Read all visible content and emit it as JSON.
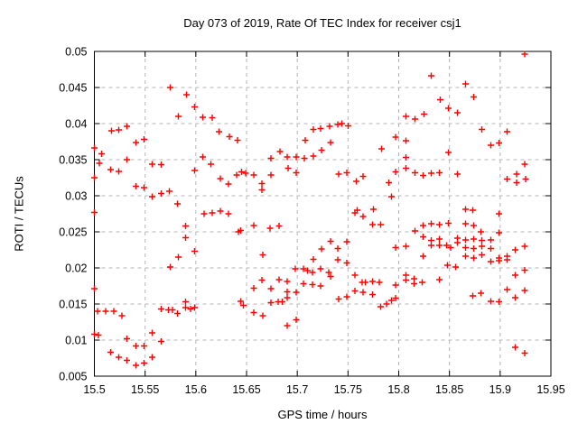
{
  "chart_data": {
    "type": "scatter",
    "title": "Day 073 of 2019, Rate Of TEC Index for receiver csj1",
    "xlabel": "GPS time / hours",
    "ylabel": "ROTI / TECUs",
    "xlim": [
      15.5,
      15.95
    ],
    "ylim": [
      0.005,
      0.05
    ],
    "grid": true,
    "legend_position": "none",
    "xticks": [
      15.5,
      15.55,
      15.6,
      15.65,
      15.7,
      15.75,
      15.8,
      15.85,
      15.9,
      15.95
    ],
    "xtick_labels": [
      "15.5",
      "15.55",
      "15.6",
      "15.65",
      "15.7",
      "15.75",
      "15.8",
      "15.85",
      "15.9",
      "15.95"
    ],
    "yticks": [
      0.005,
      0.01,
      0.015,
      0.02,
      0.025,
      0.03,
      0.035,
      0.04,
      0.045,
      0.05
    ],
    "ytick_labels": [
      "0.005",
      "0.01",
      "0.015",
      "0.02",
      "0.025",
      "0.03",
      "0.035",
      "0.04",
      "0.045",
      "0.05"
    ],
    "marker": {
      "symbol": "plus",
      "color": "#ff0000",
      "size": 7
    },
    "colors": {
      "border": "#000000",
      "grid": "#b6b6b6",
      "background": "#ffffff"
    },
    "series": [
      {
        "name": "ROTI",
        "points": [
          [
            15.575,
            0.045
          ],
          [
            15.591,
            0.044
          ],
          [
            15.599,
            0.0423
          ],
          [
            15.583,
            0.041
          ],
          [
            15.607,
            0.0409
          ],
          [
            15.616,
            0.0408
          ],
          [
            15.517,
            0.039
          ],
          [
            15.524,
            0.0391
          ],
          [
            15.532,
            0.0396
          ],
          [
            15.623,
            0.0389
          ],
          [
            15.633,
            0.0382
          ],
          [
            15.641,
            0.0377
          ],
          [
            15.541,
            0.0374
          ],
          [
            15.549,
            0.0378
          ],
          [
            15.5,
            0.0366
          ],
          [
            15.507,
            0.0358
          ],
          [
            15.532,
            0.035
          ],
          [
            15.505,
            0.0345
          ],
          [
            15.5,
            0.0325
          ],
          [
            15.516,
            0.0336
          ],
          [
            15.524,
            0.0334
          ],
          [
            15.557,
            0.0344
          ],
          [
            15.566,
            0.0343
          ],
          [
            15.607,
            0.0354
          ],
          [
            15.599,
            0.0335
          ],
          [
            15.615,
            0.0344
          ],
          [
            15.624,
            0.0324
          ],
          [
            15.632,
            0.0316
          ],
          [
            15.64,
            0.0329
          ],
          [
            15.541,
            0.0313
          ],
          [
            15.549,
            0.0311
          ],
          [
            15.557,
            0.0299
          ],
          [
            15.566,
            0.0303
          ],
          [
            15.574,
            0.0306
          ],
          [
            15.582,
            0.0289
          ],
          [
            15.608,
            0.0275
          ],
          [
            15.616,
            0.0276
          ],
          [
            15.624,
            0.0279
          ],
          [
            15.632,
            0.0275
          ],
          [
            15.5,
            0.0277
          ],
          [
            15.642,
            0.025
          ],
          [
            15.59,
            0.0258
          ],
          [
            15.59,
            0.0242
          ],
          [
            15.599,
            0.0223
          ],
          [
            15.583,
            0.0215
          ],
          [
            15.575,
            0.0201
          ],
          [
            15.5,
            0.0171
          ],
          [
            15.503,
            0.014
          ],
          [
            15.511,
            0.014
          ],
          [
            15.519,
            0.014
          ],
          [
            15.527,
            0.0134
          ],
          [
            15.566,
            0.0143
          ],
          [
            15.573,
            0.0142
          ],
          [
            15.577,
            0.0142
          ],
          [
            15.582,
            0.0137
          ],
          [
            15.59,
            0.0145
          ],
          [
            15.595,
            0.0143
          ],
          [
            15.599,
            0.0145
          ],
          [
            15.59,
            0.0153
          ],
          [
            15.5,
            0.0108
          ],
          [
            15.504,
            0.0107
          ],
          [
            15.532,
            0.0102
          ],
          [
            15.541,
            0.0092
          ],
          [
            15.549,
            0.0092
          ],
          [
            15.557,
            0.011
          ],
          [
            15.566,
            0.0098
          ],
          [
            15.516,
            0.0083
          ],
          [
            15.524,
            0.0076
          ],
          [
            15.532,
            0.0072
          ],
          [
            15.541,
            0.0065
          ],
          [
            15.549,
            0.0068
          ],
          [
            15.557,
            0.0076
          ],
          [
            15.716,
            0.0392
          ],
          [
            15.723,
            0.0393
          ],
          [
            15.732,
            0.0396
          ],
          [
            15.74,
            0.0399
          ],
          [
            15.744,
            0.04
          ],
          [
            15.75,
            0.0397
          ],
          [
            15.708,
            0.0377
          ],
          [
            15.733,
            0.0374
          ],
          [
            15.724,
            0.0363
          ],
          [
            15.683,
            0.0361
          ],
          [
            15.674,
            0.0352
          ],
          [
            15.69,
            0.0354
          ],
          [
            15.699,
            0.0354
          ],
          [
            15.707,
            0.0352
          ],
          [
            15.716,
            0.0355
          ],
          [
            15.783,
            0.0365
          ],
          [
            15.797,
            0.0381
          ],
          [
            15.691,
            0.0338
          ],
          [
            15.699,
            0.0332
          ],
          [
            15.645,
            0.0333
          ],
          [
            15.649,
            0.0331
          ],
          [
            15.657,
            0.0329
          ],
          [
            15.674,
            0.0329
          ],
          [
            15.665,
            0.0317
          ],
          [
            15.665,
            0.0308
          ],
          [
            15.741,
            0.033
          ],
          [
            15.749,
            0.0332
          ],
          [
            15.758,
            0.032
          ],
          [
            15.765,
            0.0327
          ],
          [
            15.79,
            0.0318
          ],
          [
            15.793,
            0.0299
          ],
          [
            15.775,
            0.0281
          ],
          [
            15.759,
            0.028
          ],
          [
            15.924,
            0.0496
          ],
          [
            15.832,
            0.0466
          ],
          [
            15.866,
            0.0455
          ],
          [
            15.874,
            0.0437
          ],
          [
            15.841,
            0.0433
          ],
          [
            15.849,
            0.0421
          ],
          [
            15.858,
            0.0415
          ],
          [
            15.825,
            0.0413
          ],
          [
            15.807,
            0.041
          ],
          [
            15.816,
            0.0406
          ],
          [
            15.807,
            0.0376
          ],
          [
            15.882,
            0.0392
          ],
          [
            15.907,
            0.0389
          ],
          [
            15.891,
            0.037
          ],
          [
            15.899,
            0.0373
          ],
          [
            15.849,
            0.036
          ],
          [
            15.807,
            0.0353
          ],
          [
            15.797,
            0.0333
          ],
          [
            15.807,
            0.0338
          ],
          [
            15.816,
            0.0332
          ],
          [
            15.824,
            0.0328
          ],
          [
            15.832,
            0.0331
          ],
          [
            15.84,
            0.0332
          ],
          [
            15.858,
            0.033
          ],
          [
            15.924,
            0.0344
          ],
          [
            15.907,
            0.0323
          ],
          [
            15.916,
            0.033
          ],
          [
            15.916,
            0.0318
          ],
          [
            15.925,
            0.0323
          ],
          [
            15.644,
            0.0252
          ],
          [
            15.657,
            0.0259
          ],
          [
            15.673,
            0.0255
          ],
          [
            15.682,
            0.0258
          ],
          [
            15.757,
            0.0276
          ],
          [
            15.765,
            0.0271
          ],
          [
            15.774,
            0.026
          ],
          [
            15.782,
            0.026
          ],
          [
            15.733,
            0.0237
          ],
          [
            15.749,
            0.0236
          ],
          [
            15.724,
            0.0226
          ],
          [
            15.74,
            0.0227
          ],
          [
            15.666,
            0.0218
          ],
          [
            15.716,
            0.0212
          ],
          [
            15.74,
            0.0211
          ],
          [
            15.749,
            0.0207
          ],
          [
            15.698,
            0.0199
          ],
          [
            15.706,
            0.0199
          ],
          [
            15.71,
            0.0196
          ],
          [
            15.715,
            0.0194
          ],
          [
            15.723,
            0.0199
          ],
          [
            15.731,
            0.0194
          ],
          [
            15.733,
            0.0188
          ],
          [
            15.665,
            0.0183
          ],
          [
            15.682,
            0.0184
          ],
          [
            15.69,
            0.0181
          ],
          [
            15.657,
            0.0172
          ],
          [
            15.674,
            0.0171
          ],
          [
            15.69,
            0.0167
          ],
          [
            15.699,
            0.0166
          ],
          [
            15.706,
            0.0178
          ],
          [
            15.715,
            0.0177
          ],
          [
            15.723,
            0.0175
          ],
          [
            15.757,
            0.019
          ],
          [
            15.764,
            0.018
          ],
          [
            15.767,
            0.018
          ],
          [
            15.774,
            0.0181
          ],
          [
            15.781,
            0.018
          ],
          [
            15.757,
            0.0168
          ],
          [
            15.765,
            0.0166
          ],
          [
            15.774,
            0.0163
          ],
          [
            15.644,
            0.0154
          ],
          [
            15.647,
            0.0148
          ],
          [
            15.674,
            0.0152
          ],
          [
            15.681,
            0.0153
          ],
          [
            15.685,
            0.0153
          ],
          [
            15.69,
            0.0159
          ],
          [
            15.741,
            0.0157
          ],
          [
            15.749,
            0.016
          ],
          [
            15.782,
            0.0146
          ],
          [
            15.788,
            0.015
          ],
          [
            15.793,
            0.0155
          ],
          [
            15.657,
            0.0138
          ],
          [
            15.666,
            0.0134
          ],
          [
            15.699,
            0.0128
          ],
          [
            15.69,
            0.012
          ],
          [
            15.816,
            0.0251
          ],
          [
            15.824,
            0.0259
          ],
          [
            15.832,
            0.0261
          ],
          [
            15.84,
            0.026
          ],
          [
            15.849,
            0.0262
          ],
          [
            15.824,
            0.0243
          ],
          [
            15.832,
            0.0238
          ],
          [
            15.84,
            0.024
          ],
          [
            15.832,
            0.0231
          ],
          [
            15.84,
            0.0231
          ],
          [
            15.824,
            0.0216
          ],
          [
            15.797,
            0.0228
          ],
          [
            15.807,
            0.023
          ],
          [
            15.847,
            0.0231
          ],
          [
            15.851,
            0.0228
          ],
          [
            15.866,
            0.0261
          ],
          [
            15.874,
            0.0259
          ],
          [
            15.858,
            0.0241
          ],
          [
            15.858,
            0.0235
          ],
          [
            15.866,
            0.0239
          ],
          [
            15.866,
            0.0228
          ],
          [
            15.866,
            0.0216
          ],
          [
            15.874,
            0.024
          ],
          [
            15.874,
            0.0227
          ],
          [
            15.874,
            0.0214
          ],
          [
            15.881,
            0.025
          ],
          [
            15.882,
            0.0238
          ],
          [
            15.882,
            0.023
          ],
          [
            15.882,
            0.0218
          ],
          [
            15.891,
            0.0239
          ],
          [
            15.891,
            0.0227
          ],
          [
            15.891,
            0.0209
          ],
          [
            15.899,
            0.0249
          ],
          [
            15.899,
            0.0214
          ],
          [
            15.899,
            0.021
          ],
          [
            15.907,
            0.0216
          ],
          [
            15.907,
            0.0211
          ],
          [
            15.915,
            0.0225
          ],
          [
            15.924,
            0.023
          ],
          [
            15.848,
            0.0204
          ],
          [
            15.856,
            0.0201
          ],
          [
            15.924,
            0.0197
          ],
          [
            15.915,
            0.019
          ],
          [
            15.797,
            0.0176
          ],
          [
            15.797,
            0.0158
          ],
          [
            15.807,
            0.019
          ],
          [
            15.807,
            0.0183
          ],
          [
            15.815,
            0.0185
          ],
          [
            15.815,
            0.0178
          ],
          [
            15.823,
            0.018
          ],
          [
            15.84,
            0.0184
          ],
          [
            15.873,
            0.0161
          ],
          [
            15.881,
            0.0165
          ],
          [
            15.891,
            0.0154
          ],
          [
            15.899,
            0.0153
          ],
          [
            15.907,
            0.017
          ],
          [
            15.924,
            0.0169
          ],
          [
            15.915,
            0.0159
          ],
          [
            15.915,
            0.009
          ],
          [
            15.924,
            0.0082
          ],
          [
            15.866,
            0.0281
          ],
          [
            15.873,
            0.028
          ],
          [
            15.899,
            0.0275
          ]
        ]
      }
    ]
  }
}
